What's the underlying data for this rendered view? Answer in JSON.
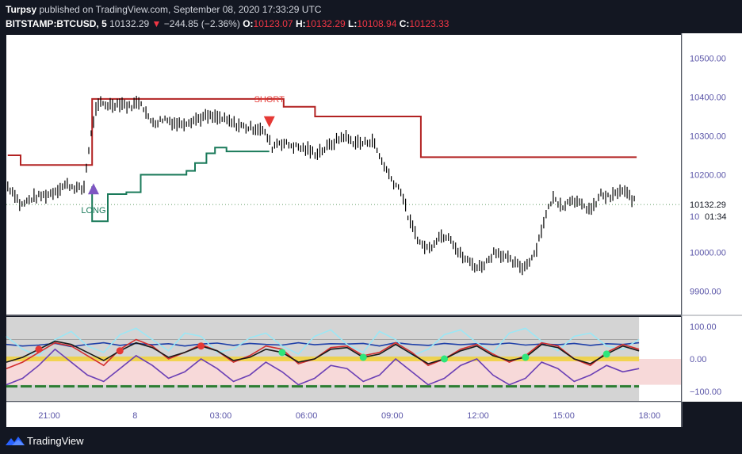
{
  "header": {
    "author": "Turpsy",
    "published": "published on TradingView.com, September 08, 2020 17:33:29 UTC",
    "symbol": "BITSTAMP:BTCUSD, 5",
    "last_price": "10132.29",
    "arrow": "▼",
    "change": "−244.85 (−2.36%)",
    "o_label": "O:",
    "o_value": "10123.07",
    "h_label": "H:",
    "h_value": "10132.29",
    "l_label": "L:",
    "l_value": "10108.94",
    "c_label": "C:",
    "c_value": "10123.33"
  },
  "footer": {
    "brand": "TradingView",
    "logo": "tradingview-logo-icon"
  },
  "colors": {
    "background": "#131722",
    "plot_bg": "#ffffff",
    "candle": "#000000",
    "stop_short": "#b22222",
    "stop_long": "#1a7a5a",
    "long_marker": "#7e57c2",
    "short_marker": "#e53935",
    "axis_text": "#5a55a8",
    "osc_bg": "#d4d4d4",
    "osc_pink": "#f7d9d9"
  },
  "chart_data": [
    {
      "type": "line",
      "subtype": "candlestick",
      "ylim": [
        9840,
        10560
      ],
      "y_ticks": [
        "10500.00",
        "10400.00",
        "10300.00",
        "10200.00",
        "10000.00",
        "9900.00"
      ],
      "y_tick_values": [
        10500,
        10400,
        10300,
        10200,
        10000,
        9900
      ],
      "partial_tick_label": "10",
      "current_price_label": "10132.29",
      "countdown_label": "01:34",
      "x_ticks": [
        "21:00",
        "8",
        "03:00",
        "06:00",
        "09:00",
        "12:00",
        "15:00",
        "18:00"
      ],
      "x_tick_hours": [
        -3,
        0,
        3,
        6,
        9,
        12,
        15,
        18
      ],
      "price_series_hours": [
        -4.45,
        -4.2,
        -4.0,
        -3.6,
        -3.0,
        -2.4,
        -1.8,
        -1.6,
        -1.4,
        -1.2,
        -1.0,
        -0.8,
        -0.5,
        -0.2,
        0.2,
        0.5,
        0.8,
        1.0,
        1.5,
        2.0,
        2.5,
        3.0,
        3.5,
        4.0,
        4.4,
        4.65,
        4.8,
        5.0,
        5.5,
        6.0,
        6.3,
        6.6,
        7.0,
        7.3,
        7.6,
        8.0,
        8.3,
        8.6,
        9.0,
        9.3,
        9.6,
        10.0,
        10.3,
        10.6,
        11.0,
        11.3,
        11.6,
        12.0,
        12.3,
        12.6,
        13.0,
        13.3,
        13.6,
        14.0,
        14.3,
        14.6,
        15.0,
        15.3,
        15.6,
        16.0,
        16.3,
        16.6,
        17.0,
        17.3,
        17.55
      ],
      "price_series": [
        10170,
        10150,
        10120,
        10140,
        10150,
        10175,
        10160,
        10275,
        10360,
        10385,
        10380,
        10380,
        10385,
        10375,
        10390,
        10340,
        10335,
        10345,
        10330,
        10340,
        10350,
        10345,
        10330,
        10320,
        10320,
        10295,
        10270,
        10285,
        10275,
        10265,
        10255,
        10265,
        10285,
        10300,
        10285,
        10280,
        10290,
        10240,
        10185,
        10160,
        10080,
        10020,
        10010,
        10040,
        10045,
        10000,
        9980,
        9960,
        9975,
        10005,
        9985,
        9970,
        9960,
        10000,
        10080,
        10140,
        10120,
        10140,
        10120,
        10110,
        10150,
        10140,
        10160,
        10145,
        10125
      ],
      "candle_range_half": 12,
      "short_stop_hours": [
        -4.45,
        -4.0,
        -4.0,
        -1.5,
        -1.5,
        4.7,
        4.7,
        5.2,
        5.2,
        6.3,
        6.3,
        8.7,
        8.7,
        10.0,
        10.0,
        17.55
      ],
      "short_stop_values": [
        10250,
        10250,
        10225,
        10225,
        10395,
        10395,
        10395,
        10395,
        10375,
        10375,
        10350,
        10350,
        10350,
        10350,
        10245,
        10245
      ],
      "long_stop_hours": [
        -1.5,
        -1.5,
        -0.95,
        -0.95,
        -0.3,
        -0.3,
        0.2,
        0.2,
        1.8,
        1.8,
        2.1,
        2.1,
        2.5,
        2.5,
        2.8,
        2.8,
        3.2,
        3.2,
        4.7
      ],
      "long_stop_values": [
        10170,
        10080,
        10080,
        10150,
        10150,
        10155,
        10155,
        10200,
        10200,
        10210,
        10210,
        10230,
        10230,
        10255,
        10255,
        10270,
        10270,
        10260,
        10260
      ],
      "signals": [
        {
          "label": "LONG",
          "hour": -1.45,
          "price": 10170,
          "direction": "up"
        },
        {
          "label": "SHORT",
          "hour": 4.7,
          "price": 10330,
          "direction": "down"
        }
      ],
      "grid": false
    },
    {
      "type": "line",
      "subtype": "oscillator",
      "ylim": [
        -130,
        130
      ],
      "y_ticks": [
        "100.00",
        "0.00",
        "−100.00"
      ],
      "y_tick_values": [
        100,
        0,
        -100
      ],
      "levels": [
        60,
        -60
      ],
      "series": [
        {
          "color": "#1e3fa8",
          "values": [
            45,
            40,
            43,
            48,
            38,
            45,
            50,
            42,
            48,
            44,
            47,
            40,
            46,
            49,
            42,
            48,
            45,
            43,
            50,
            44,
            47,
            46,
            48,
            40,
            50,
            45,
            42,
            48,
            44,
            47,
            45,
            49,
            43,
            46,
            44,
            48,
            42,
            47,
            45,
            50
          ]
        },
        {
          "color": "#9be7f5",
          "values": [
            70,
            30,
            10,
            60,
            85,
            40,
            20,
            75,
            95,
            60,
            25,
            80,
            70,
            20,
            30,
            65,
            80,
            40,
            15,
            70,
            90,
            45,
            20,
            85,
            60,
            10,
            30,
            75,
            90,
            50,
            20,
            80,
            95,
            55,
            25,
            70,
            80,
            40,
            30,
            60
          ]
        },
        {
          "color": "#d32f2f",
          "values": [
            -30,
            -10,
            20,
            50,
            40,
            10,
            -20,
            30,
            60,
            40,
            0,
            20,
            45,
            25,
            -10,
            10,
            40,
            30,
            -15,
            0,
            35,
            40,
            10,
            20,
            50,
            20,
            -20,
            0,
            30,
            45,
            15,
            -10,
            10,
            50,
            40,
            0,
            -20,
            20,
            45,
            30
          ]
        },
        {
          "color": "#6a3fb5",
          "values": [
            -80,
            -60,
            -20,
            30,
            -10,
            -50,
            -70,
            -30,
            10,
            -20,
            -60,
            -40,
            0,
            -30,
            -70,
            -50,
            -10,
            -40,
            -80,
            -60,
            -20,
            -30,
            -70,
            -50,
            0,
            -40,
            -80,
            -60,
            -20,
            0,
            -50,
            -80,
            -60,
            -10,
            -30,
            -70,
            -50,
            -20,
            -40,
            -30
          ]
        },
        {
          "color": "#1a1a1a",
          "values": [
            -10,
            5,
            30,
            55,
            45,
            20,
            -5,
            25,
            50,
            35,
            5,
            20,
            40,
            25,
            -5,
            5,
            30,
            20,
            -10,
            0,
            30,
            35,
            5,
            15,
            45,
            15,
            -15,
            0,
            25,
            40,
            10,
            -5,
            5,
            45,
            35,
            0,
            -15,
            15,
            40,
            25
          ]
        }
      ],
      "grid": false
    }
  ]
}
